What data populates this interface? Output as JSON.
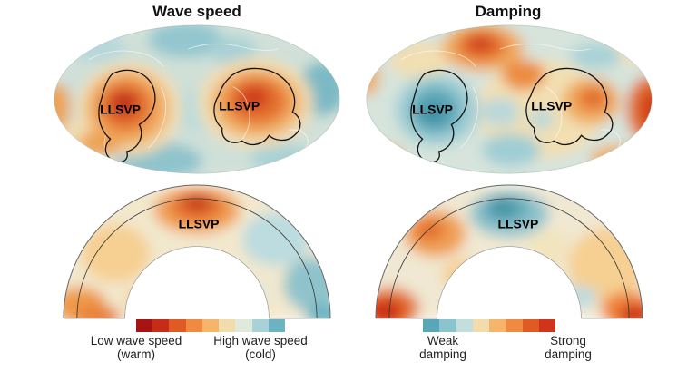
{
  "titles": {
    "wave": "Wave speed",
    "damping": "Damping"
  },
  "labels": {
    "llsvp": "LLSVP"
  },
  "legend_wave": {
    "low_line1": "Low wave speed",
    "low_line2": "(warm)",
    "high_line1": "High wave speed",
    "high_line2": "(cold)",
    "colors": [
      "#a81313",
      "#c62c18",
      "#e05a24",
      "#ef8a40",
      "#f5b56a",
      "#f3dcab",
      "#dfeadb",
      "#a9d2d8",
      "#6cb3c2"
    ]
  },
  "legend_damping": {
    "weak_line1": "Weak",
    "weak_line2": "damping",
    "strong_line1": "Strong",
    "strong_line2": "damping",
    "colors": [
      "#58a6ba",
      "#8cc4ce",
      "#c2dedd",
      "#f3dcab",
      "#f5b56a",
      "#ef8a40",
      "#e05a24",
      "#d0341b"
    ]
  },
  "palette": {
    "map_background": "#d6e4dc",
    "warm_core": "#c2331a",
    "warm_mid": "#e4712f",
    "warm_light": "#f0ac60",
    "pale": "#f2ddb0",
    "cool_light": "#a9d1d6",
    "cool_mid": "#5fa8b8",
    "cool_core": "#3e8fa3"
  }
}
